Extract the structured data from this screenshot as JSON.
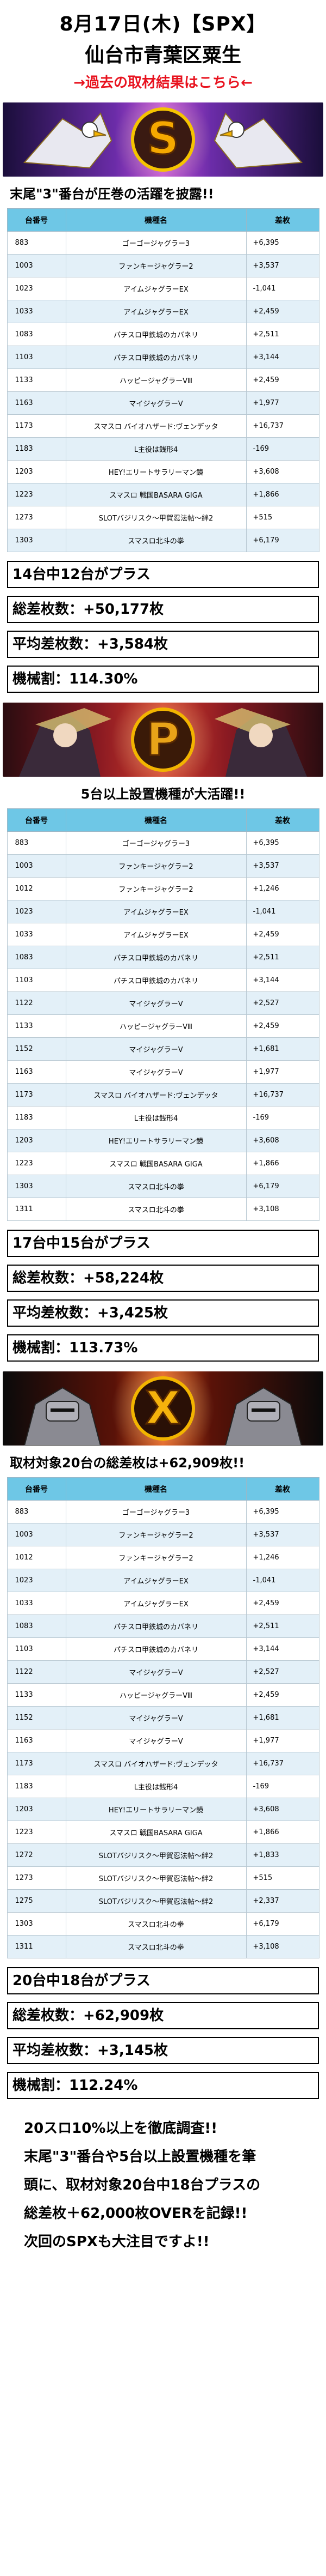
{
  "header": {
    "date_line": "8月17日(木)【SPX】",
    "place_line": "仙台市青葉区粟生",
    "past_link": "→過去の取材結果はこちら←"
  },
  "banners": {
    "s": {
      "letter": "S",
      "color": "#f5a800"
    },
    "p": {
      "letter": "P",
      "color": "#e9a318"
    },
    "x": {
      "letter": "X",
      "color": "#f4b20c"
    }
  },
  "table_headers": [
    "台番号",
    "機種名",
    "差枚"
  ],
  "section1": {
    "headline": "末尾\"3\"番台が圧巻の活躍を披露!!",
    "rows": [
      {
        "no": "883",
        "machine": "ゴーゴージャグラー3",
        "diff": "+6,395"
      },
      {
        "no": "1003",
        "machine": "ファンキージャグラー2",
        "diff": "+3,537"
      },
      {
        "no": "1023",
        "machine": "アイムジャグラーEX",
        "diff": "-1,041"
      },
      {
        "no": "1033",
        "machine": "アイムジャグラーEX",
        "diff": "+2,459"
      },
      {
        "no": "1083",
        "machine": "パチスロ甲鉄城のカバネリ",
        "diff": "+2,511"
      },
      {
        "no": "1103",
        "machine": "パチスロ甲鉄城のカバネリ",
        "diff": "+3,144"
      },
      {
        "no": "1133",
        "machine": "ハッピージャグラーVⅢ",
        "diff": "+2,459"
      },
      {
        "no": "1163",
        "machine": "マイジャグラーV",
        "diff": "+1,977"
      },
      {
        "no": "1173",
        "machine": "スマスロ バイオハザード:ヴェンデッタ",
        "diff": "+16,737"
      },
      {
        "no": "1183",
        "machine": "L主役は銭形4",
        "diff": "-169"
      },
      {
        "no": "1203",
        "machine": "HEY!エリートサラリーマン鏡",
        "diff": "+3,608"
      },
      {
        "no": "1223",
        "machine": "スマスロ 戦国BASARA GIGA",
        "diff": "+1,866"
      },
      {
        "no": "1273",
        "machine": "SLOTバジリスク～甲賀忍法帖～絆2",
        "diff": "+515"
      },
      {
        "no": "1303",
        "machine": "スマスロ北斗の拳",
        "diff": "+6,179"
      }
    ],
    "summary": [
      "14台中12台がプラス",
      "総差枚数：+50,177枚",
      "平均差枚数：+3,584枚",
      "機械割：114.30%"
    ]
  },
  "section2": {
    "headline": "5台以上設置機種が大活躍!!",
    "rows": [
      {
        "no": "883",
        "machine": "ゴーゴージャグラー3",
        "diff": "+6,395"
      },
      {
        "no": "1003",
        "machine": "ファンキージャグラー2",
        "diff": "+3,537"
      },
      {
        "no": "1012",
        "machine": "ファンキージャグラー2",
        "diff": "+1,246"
      },
      {
        "no": "1023",
        "machine": "アイムジャグラーEX",
        "diff": "-1,041"
      },
      {
        "no": "1033",
        "machine": "アイムジャグラーEX",
        "diff": "+2,459"
      },
      {
        "no": "1083",
        "machine": "パチスロ甲鉄城のカバネリ",
        "diff": "+2,511"
      },
      {
        "no": "1103",
        "machine": "パチスロ甲鉄城のカバネリ",
        "diff": "+3,144"
      },
      {
        "no": "1122",
        "machine": "マイジャグラーV",
        "diff": "+2,527"
      },
      {
        "no": "1133",
        "machine": "ハッピージャグラーVⅢ",
        "diff": "+2,459"
      },
      {
        "no": "1152",
        "machine": "マイジャグラーV",
        "diff": "+1,681"
      },
      {
        "no": "1163",
        "machine": "マイジャグラーV",
        "diff": "+1,977"
      },
      {
        "no": "1173",
        "machine": "スマスロ バイオハザード:ヴェンデッタ",
        "diff": "+16,737"
      },
      {
        "no": "1183",
        "machine": "L主役は銭形4",
        "diff": "-169"
      },
      {
        "no": "1203",
        "machine": "HEY!エリートサラリーマン鏡",
        "diff": "+3,608"
      },
      {
        "no": "1223",
        "machine": "スマスロ 戦国BASARA GIGA",
        "diff": "+1,866"
      },
      {
        "no": "1303",
        "machine": "スマスロ北斗の拳",
        "diff": "+6,179"
      },
      {
        "no": "1311",
        "machine": "スマスロ北斗の拳",
        "diff": "+3,108"
      }
    ],
    "summary": [
      "17台中15台がプラス",
      "総差枚数：+58,224枚",
      "平均差枚数：+3,425枚",
      "機械割：113.73%"
    ]
  },
  "section3": {
    "headline": "取材対象20台の総差枚は+62,909枚!!",
    "rows": [
      {
        "no": "883",
        "machine": "ゴーゴージャグラー3",
        "diff": "+6,395"
      },
      {
        "no": "1003",
        "machine": "ファンキージャグラー2",
        "diff": "+3,537"
      },
      {
        "no": "1012",
        "machine": "ファンキージャグラー2",
        "diff": "+1,246"
      },
      {
        "no": "1023",
        "machine": "アイムジャグラーEX",
        "diff": "-1,041"
      },
      {
        "no": "1033",
        "machine": "アイムジャグラーEX",
        "diff": "+2,459"
      },
      {
        "no": "1083",
        "machine": "パチスロ甲鉄城のカバネリ",
        "diff": "+2,511"
      },
      {
        "no": "1103",
        "machine": "パチスロ甲鉄城のカバネリ",
        "diff": "+3,144"
      },
      {
        "no": "1122",
        "machine": "マイジャグラーV",
        "diff": "+2,527"
      },
      {
        "no": "1133",
        "machine": "ハッピージャグラーVⅢ",
        "diff": "+2,459"
      },
      {
        "no": "1152",
        "machine": "マイジャグラーV",
        "diff": "+1,681"
      },
      {
        "no": "1163",
        "machine": "マイジャグラーV",
        "diff": "+1,977"
      },
      {
        "no": "1173",
        "machine": "スマスロ バイオハザード:ヴェンデッタ",
        "diff": "+16,737"
      },
      {
        "no": "1183",
        "machine": "L主役は銭形4",
        "diff": "-169"
      },
      {
        "no": "1203",
        "machine": "HEY!エリートサラリーマン鏡",
        "diff": "+3,608"
      },
      {
        "no": "1223",
        "machine": "スマスロ 戦国BASARA GIGA",
        "diff": "+1,866"
      },
      {
        "no": "1272",
        "machine": "SLOTバジリスク～甲賀忍法帖～絆2",
        "diff": "+1,833"
      },
      {
        "no": "1273",
        "machine": "SLOTバジリスク～甲賀忍法帖～絆2",
        "diff": "+515"
      },
      {
        "no": "1275",
        "machine": "SLOTバジリスク～甲賀忍法帖～絆2",
        "diff": "+2,337"
      },
      {
        "no": "1303",
        "machine": "スマスロ北斗の拳",
        "diff": "+6,179"
      },
      {
        "no": "1311",
        "machine": "スマスロ北斗の拳",
        "diff": "+3,108"
      }
    ],
    "summary": [
      "20台中18台がプラス",
      "総差枚数：+62,909枚",
      "平均差枚数：+3,145枚",
      "機械割：112.24%"
    ]
  },
  "closing": {
    "lines": [
      "20スロ10%以上を徹底調査!!",
      "末尾\"3\"番台や5台以上設置機種を筆",
      "頭に、取材対象20台中18台プラスの",
      "総差枚＋62,000枚OVERを記録!!",
      "次回のSPXも大注目ですよ!!"
    ]
  }
}
